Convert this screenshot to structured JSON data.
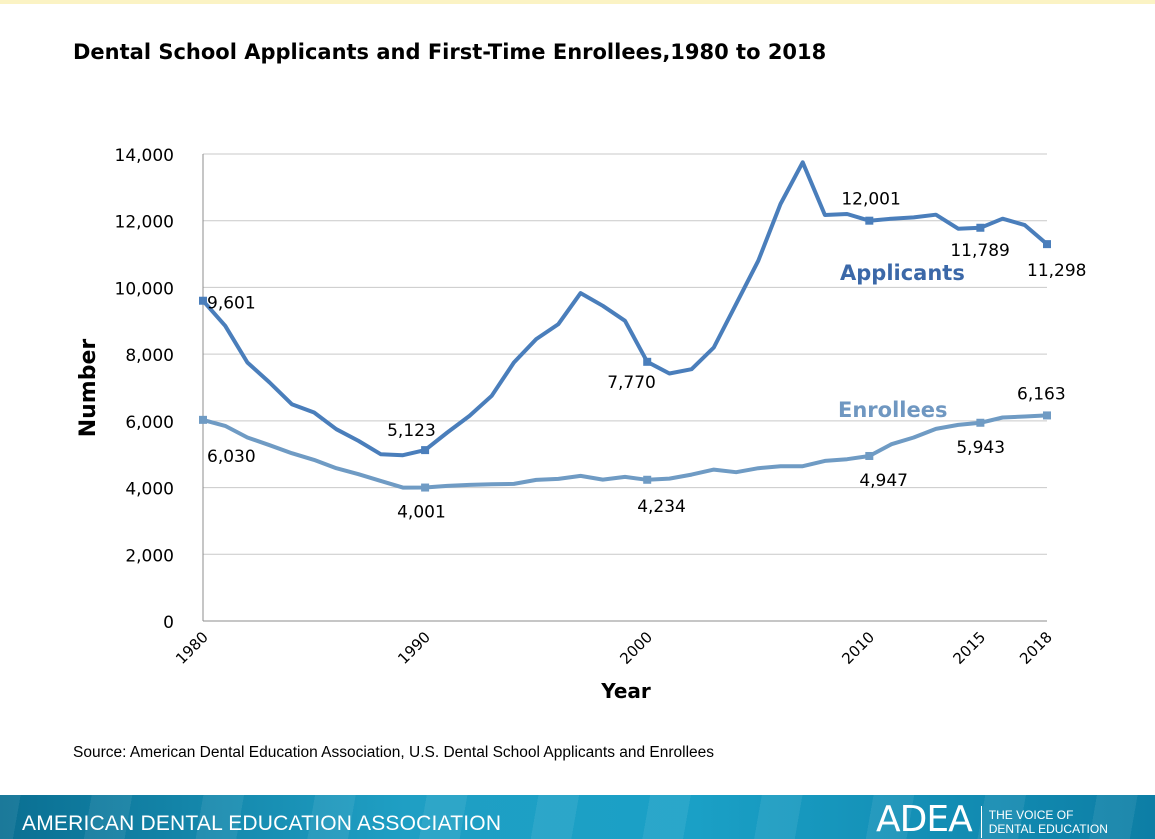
{
  "title": "Dental School Applicants and First-Time Enrollees,1980 to 2018",
  "source": "Source: American Dental Education Association, U.S. Dental School Applicants and Enrollees",
  "footer": {
    "org_name": "AMERICAN DENTAL EDUCATION ASSOCIATION",
    "logo": "ADEA",
    "tagline_line1": "THE VOICE OF",
    "tagline_line2": "DENTAL EDUCATION"
  },
  "colors": {
    "applicants": "#4a7ebb",
    "enrollees": "#6f9bc4",
    "applicants_label": "#3b68a8",
    "enrollees_label": "#6f97c1",
    "grid": "#c9c9c9",
    "footer": "#1a9cc2"
  },
  "chart_data": {
    "type": "line",
    "title": "Dental School Applicants and First-Time Enrollees,1980 to 2018",
    "xlabel": "Year",
    "ylabel": "Number",
    "xlim": [
      1980,
      2018
    ],
    "ylim": [
      0,
      14000
    ],
    "yticks": [
      0,
      2000,
      4000,
      6000,
      8000,
      10000,
      12000,
      14000
    ],
    "ytick_labels": [
      "0",
      "2,000",
      "4,000",
      "6,000",
      "8,000",
      "10,000",
      "12,000",
      "14,000"
    ],
    "xticks": [
      1980,
      1990,
      2000,
      2010,
      2015,
      2018
    ],
    "xtick_labels": [
      "1980",
      "1990",
      "2000",
      "2010",
      "2015",
      "2018"
    ],
    "grid": true,
    "series": [
      {
        "name": "Applicants",
        "x": [
          1980,
          1981,
          1982,
          1983,
          1984,
          1985,
          1986,
          1987,
          1988,
          1989,
          1990,
          1991,
          1992,
          1993,
          1994,
          1995,
          1996,
          1997,
          1998,
          1999,
          2000,
          2001,
          2002,
          2003,
          2004,
          2005,
          2006,
          2007,
          2008,
          2009,
          2010,
          2011,
          2012,
          2013,
          2014,
          2015,
          2016,
          2017,
          2018
        ],
        "values": [
          9601,
          8850,
          7750,
          7150,
          6500,
          6250,
          5750,
          5400,
          5000,
          4970,
          5123,
          5650,
          6150,
          6750,
          7750,
          8450,
          8900,
          9830,
          9450,
          9000,
          7770,
          7420,
          7550,
          8200,
          9500,
          10800,
          12500,
          13750,
          12170,
          12200,
          12001,
          12060,
          12100,
          12180,
          11760,
          11789,
          12060,
          11870,
          11298
        ],
        "labels": [
          {
            "year": 1980,
            "value": 9601,
            "text": "9,601"
          },
          {
            "year": 1990,
            "value": 5123,
            "text": "5,123"
          },
          {
            "year": 2000,
            "value": 7770,
            "text": "7,770"
          },
          {
            "year": 2010,
            "value": 12001,
            "text": "12,001"
          },
          {
            "year": 2015,
            "value": 11789,
            "text": "11,789"
          },
          {
            "year": 2018,
            "value": 11298,
            "text": "11,298"
          }
        ]
      },
      {
        "name": "Enrollees",
        "x": [
          1980,
          1981,
          1982,
          1983,
          1984,
          1985,
          1986,
          1987,
          1988,
          1989,
          1990,
          1991,
          1992,
          1993,
          1994,
          1995,
          1996,
          1997,
          1998,
          1999,
          2000,
          2001,
          2002,
          2003,
          2004,
          2005,
          2006,
          2007,
          2008,
          2009,
          2010,
          2011,
          2012,
          2013,
          2014,
          2015,
          2016,
          2017,
          2018
        ],
        "values": [
          6030,
          5850,
          5500,
          5270,
          5030,
          4830,
          4580,
          4400,
          4200,
          4000,
          4001,
          4050,
          4080,
          4100,
          4110,
          4230,
          4260,
          4350,
          4240,
          4320,
          4234,
          4270,
          4390,
          4540,
          4460,
          4580,
          4640,
          4640,
          4800,
          4850,
          4947,
          5300,
          5500,
          5760,
          5880,
          5943,
          6100,
          6130,
          6163
        ],
        "labels": [
          {
            "year": 1980,
            "value": 6030,
            "text": "6,030"
          },
          {
            "year": 1990,
            "value": 4001,
            "text": "4,001"
          },
          {
            "year": 2000,
            "value": 4234,
            "text": "4,234"
          },
          {
            "year": 2010,
            "value": 4947,
            "text": "4,947"
          },
          {
            "year": 2015,
            "value": 5943,
            "text": "5,943"
          },
          {
            "year": 2018,
            "value": 6163,
            "text": "6,163"
          }
        ]
      }
    ]
  }
}
